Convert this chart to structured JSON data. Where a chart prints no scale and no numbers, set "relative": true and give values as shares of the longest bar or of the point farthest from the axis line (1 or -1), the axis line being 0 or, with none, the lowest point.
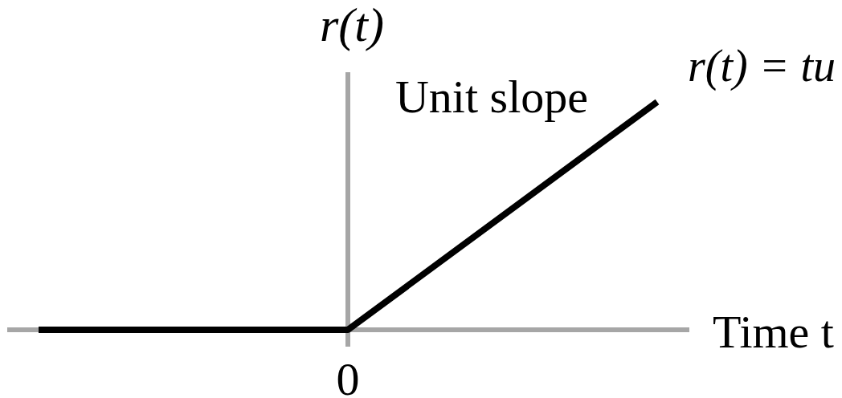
{
  "chart_data": {
    "type": "line",
    "relative": true,
    "xlabel": "Time t",
    "ylabel": "r(t)",
    "annotations": [
      "Unit slope",
      "r(t) = tu",
      "0"
    ],
    "categories": [
      null,
      null,
      null
    ],
    "values": [
      0,
      0,
      1
    ],
    "color": "#000000",
    "marker": "none",
    "legend": false
  }
}
